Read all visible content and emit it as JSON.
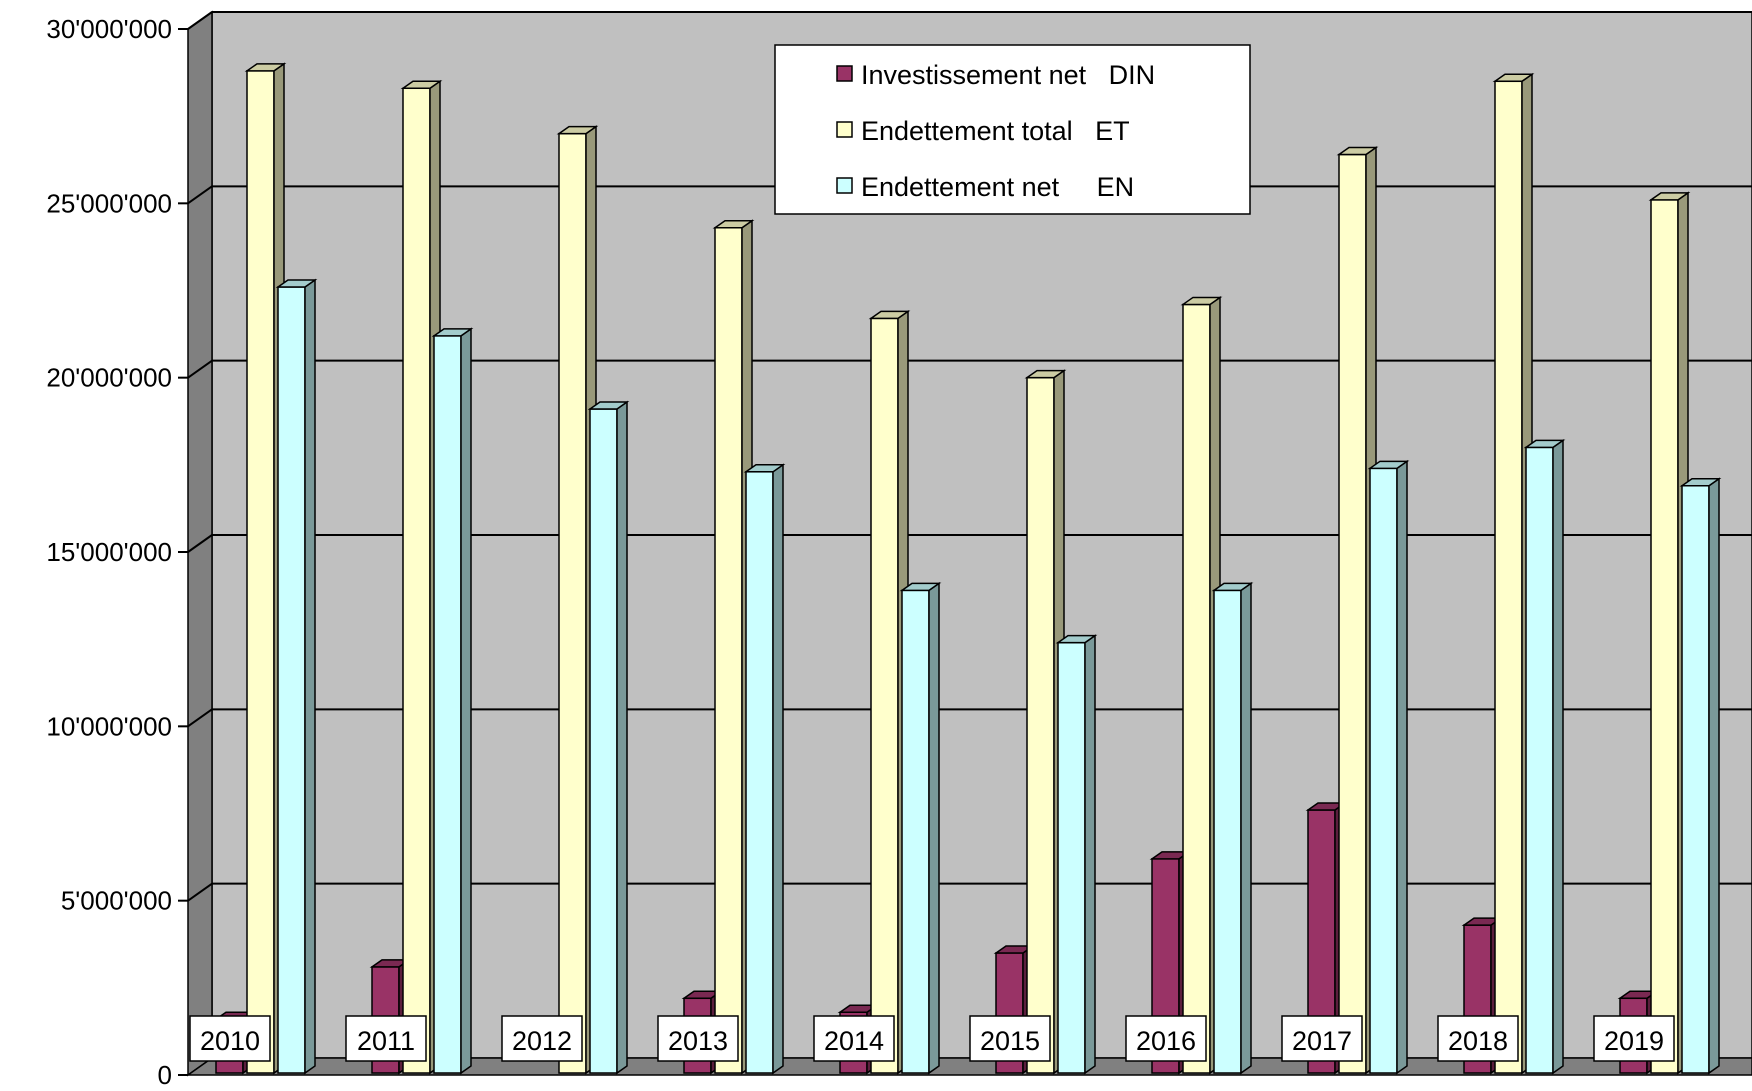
{
  "chart_data": {
    "type": "bar",
    "title": "",
    "xlabel": "",
    "ylabel": "",
    "ylim": [
      0,
      30000000
    ],
    "yticks": [
      0,
      5000000,
      10000000,
      15000000,
      20000000,
      25000000,
      30000000
    ],
    "ytick_labels": [
      "0",
      "5'000'000",
      "10'000'000",
      "15'000'000",
      "20'000'000",
      "25'000'000",
      "30'000'000"
    ],
    "grid": true,
    "legend_position": "top-center",
    "categories": [
      "2010",
      "2011",
      "2012",
      "2013",
      "2014",
      "2015",
      "2016",
      "2017",
      "2018",
      "2019"
    ],
    "series": [
      {
        "name": "Investissement net   DIN",
        "color": "#993366",
        "values": [
          1600000,
          3100000,
          0,
          2200000,
          1800000,
          3500000,
          6200000,
          7600000,
          4300000,
          2200000
        ]
      },
      {
        "name": "Endettement total   ET",
        "color": "#FFFFCC",
        "values": [
          28800000,
          28300000,
          27000000,
          24300000,
          21700000,
          20000000,
          22100000,
          26400000,
          28500000,
          25100000
        ]
      },
      {
        "name": "Endettement net     EN",
        "color": "#CCFFFF",
        "values": [
          22600000,
          21200000,
          19100000,
          17300000,
          13900000,
          12400000,
          13900000,
          17400000,
          18000000,
          16900000
        ]
      }
    ]
  }
}
